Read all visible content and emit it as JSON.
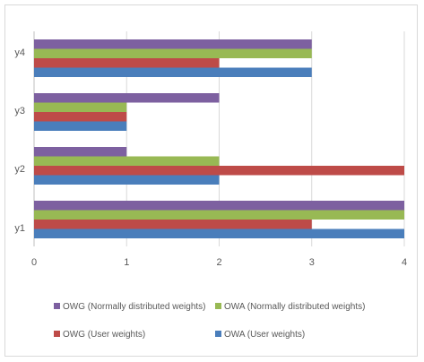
{
  "chart_data": {
    "type": "bar",
    "orientation": "horizontal",
    "categories": [
      "y1",
      "y2",
      "y3",
      "y4"
    ],
    "xlim": [
      0,
      4
    ],
    "x_ticks": [
      0,
      1,
      2,
      3,
      4
    ],
    "grid": "vertical",
    "legend_position": "bottom",
    "series": [
      {
        "name": "OWA (User weights)",
        "color": "#4a7ebb",
        "values": [
          4,
          2,
          1,
          3
        ]
      },
      {
        "name": "OWG (User weights)",
        "color": "#be4b48",
        "values": [
          3,
          4,
          1,
          2
        ]
      },
      {
        "name": "OWA (Normally distributed weights)",
        "color": "#98b954",
        "values": [
          4,
          2,
          1,
          3
        ]
      },
      {
        "name": "OWG (Normally distributed weights)",
        "color": "#7d60a0",
        "values": [
          4,
          1,
          2,
          3
        ]
      }
    ]
  }
}
